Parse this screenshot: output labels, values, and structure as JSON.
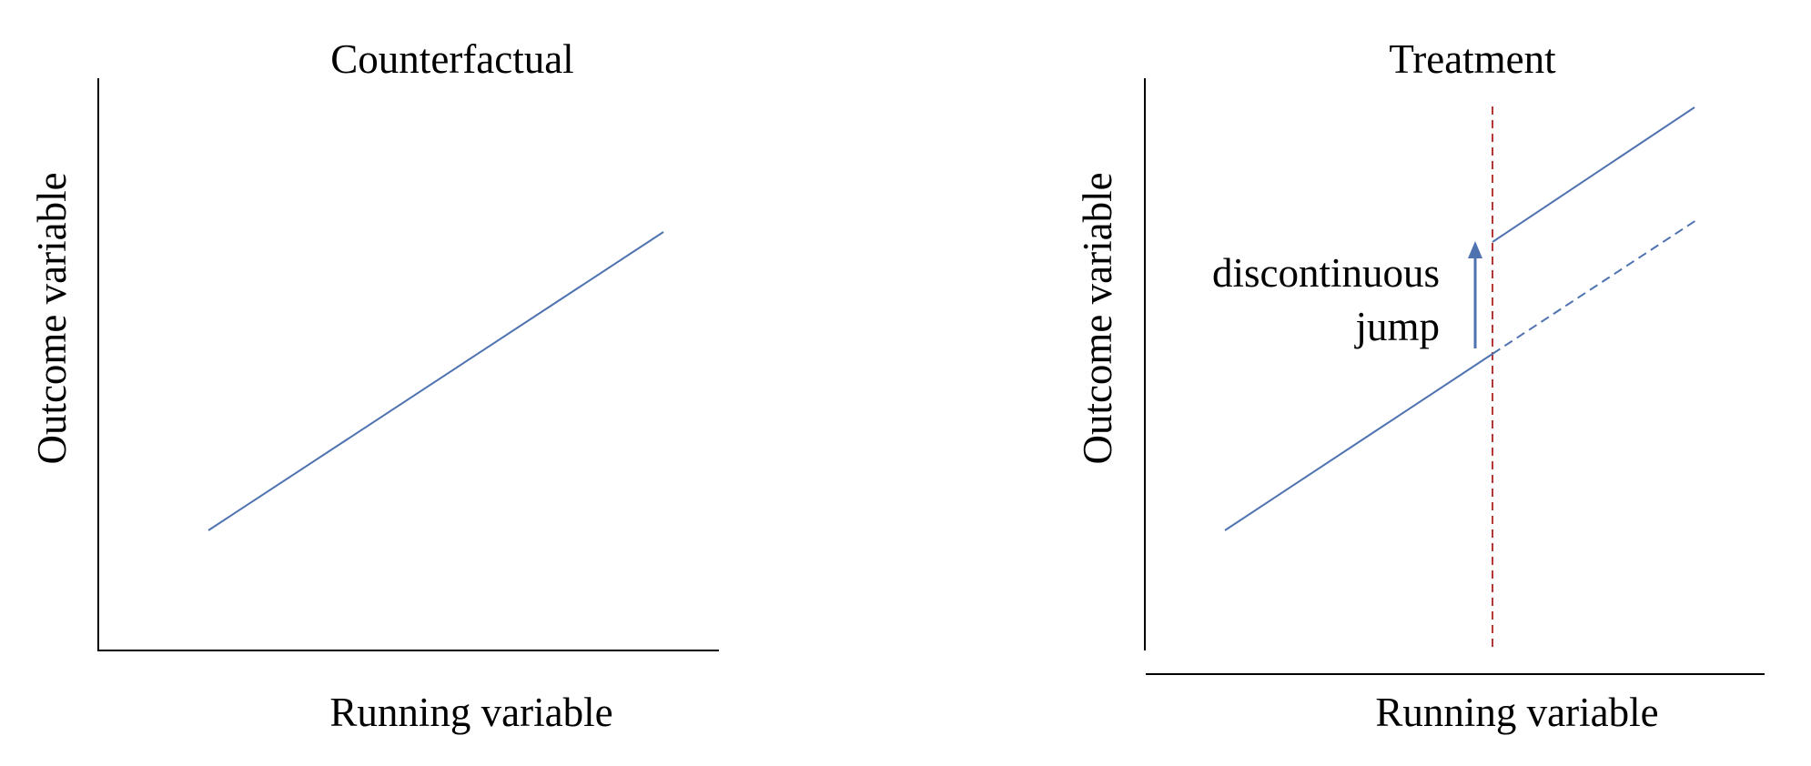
{
  "panels": {
    "left": {
      "title": "Counterfactual",
      "xlabel": "Running variable",
      "ylabel": "Outcome variable"
    },
    "right": {
      "title": "Treatment",
      "xlabel": "Running variable",
      "ylabel": "Outcome variable",
      "annotation": {
        "line1": "discontinuous",
        "line2": "jump"
      }
    }
  },
  "colors": {
    "trend_line": "#4f73b1",
    "cutoff_line": "#b53a35",
    "axis": "#000000",
    "text": "#000000"
  }
}
